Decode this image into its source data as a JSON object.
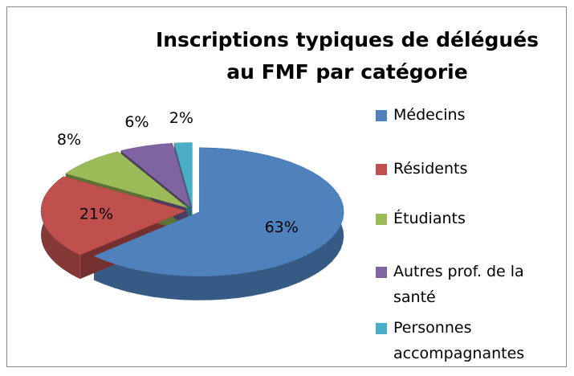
{
  "chart_data": {
    "type": "pie",
    "title": "Inscriptions typiques de délégués au FMF par catégorie",
    "categories": [
      "Médecins",
      "Résidents",
      "Étudiants",
      "Autres prof. de la santé",
      "Personnes accompagnantes"
    ],
    "values": [
      63,
      21,
      8,
      6,
      2
    ],
    "value_labels": [
      "63%",
      "21%",
      "8%",
      "6%",
      "2%"
    ],
    "colors": [
      "#4f81bd",
      "#c0504d",
      "#9bbb59",
      "#8064a2",
      "#4bacc6"
    ],
    "legend": "right"
  }
}
